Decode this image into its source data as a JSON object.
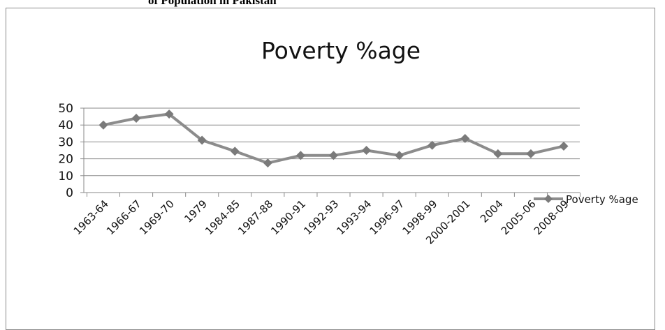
{
  "figure": {
    "caption_fragment": "of Population in Pakistan"
  },
  "chart_data": {
    "type": "line",
    "title": "Poverty %age",
    "xlabel": "",
    "ylabel": "",
    "categories": [
      "1963-64",
      "1966-67",
      "1969-70",
      "1979",
      "1984-85",
      "1987-88",
      "1990-91",
      "1992-93",
      "1993-94",
      "1996-97",
      "1998-99",
      "2000-2001",
      "2004",
      "2005-06",
      "2008-09"
    ],
    "series": [
      {
        "name": "Poverty %age",
        "values": [
          40,
          44,
          46.5,
          31,
          24.5,
          17.5,
          22,
          22,
          25,
          22,
          28,
          32,
          23,
          23,
          27.5
        ]
      }
    ],
    "ylim": [
      0,
      50
    ],
    "yticks": [
      0,
      10,
      20,
      30,
      40,
      50
    ],
    "grid": true,
    "legend_position": "right",
    "colors": {
      "line": "#8c8c8c",
      "marker": "#7a7a7a",
      "grid": "#8a8a8a",
      "axis": "#8a8a8a"
    }
  }
}
